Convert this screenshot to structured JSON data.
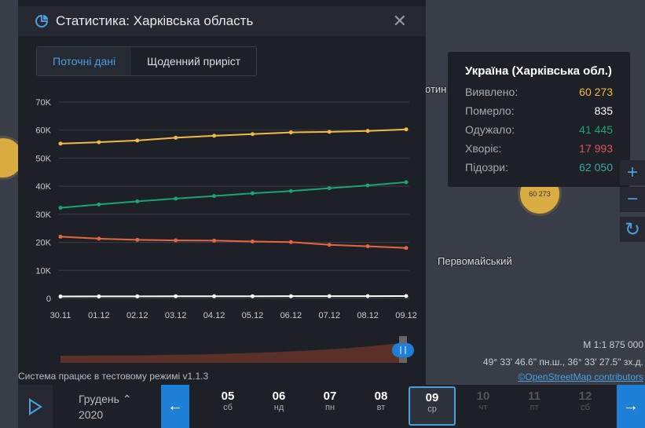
{
  "panel": {
    "title": "Статистика: Харківська область",
    "close": "✕",
    "tabs": [
      {
        "label": "Поточні дані",
        "active": true
      },
      {
        "label": "Щоденний приріст",
        "active": false
      }
    ]
  },
  "chart_data": {
    "type": "line",
    "x": [
      "30.11",
      "01.12",
      "02.12",
      "03.12",
      "04.12",
      "05.12",
      "06.12",
      "07.12",
      "08.12",
      "09.12"
    ],
    "yticks": [
      "0",
      "10K",
      "20K",
      "30K",
      "40K",
      "50K",
      "60K",
      "70K"
    ],
    "ylim": [
      0,
      70000
    ],
    "grid": true,
    "series": [
      {
        "color": "#f5b942",
        "values": [
          55200,
          55700,
          56300,
          57300,
          58000,
          58600,
          59200,
          59400,
          59700,
          60273
        ]
      },
      {
        "color": "#1aa56f",
        "values": [
          32300,
          33500,
          34600,
          35600,
          36500,
          37500,
          38300,
          39300,
          40300,
          41445
        ]
      },
      {
        "color": "#e8643c",
        "values": [
          22000,
          21300,
          20900,
          20700,
          20600,
          20300,
          20100,
          19100,
          18600,
          17993
        ]
      },
      {
        "color": "#ffffff",
        "values": [
          700,
          720,
          740,
          760,
          770,
          780,
          790,
          800,
          815,
          835
        ]
      }
    ]
  },
  "status": "Система працює в тестовому режимі v1.1.3",
  "tooltip": {
    "title": "Україна (Харківська обл.)",
    "rows": [
      {
        "label": "Виявлено:",
        "value": "60 273",
        "color": "#f5b942"
      },
      {
        "label": "Померло:",
        "value": "835",
        "color": "#ffffff"
      },
      {
        "label": "Одужало:",
        "value": "41 445",
        "color": "#1aa56f"
      },
      {
        "label": "Хворіє:",
        "value": "17 993",
        "color": "#e05252"
      },
      {
        "label": "Підозри:",
        "value": "62 050",
        "color": "#3aa6a0"
      }
    ]
  },
  "map": {
    "bubble": "60 273",
    "place1": "Первомайський",
    "place2": "отин",
    "scale": "М 1:1 875 000",
    "coords": "49° 33' 46.6\" пн.ш., 36° 33' 27.5\" зх.д.",
    "attribution": "©OpenStreetMap contributors",
    "zoom_in": "+",
    "zoom_out": "−",
    "reset": "↻"
  },
  "timeline": {
    "month": "Грудень",
    "year": "2020",
    "days": [
      {
        "n": "05",
        "w": "сб"
      },
      {
        "n": "06",
        "w": "нд"
      },
      {
        "n": "07",
        "w": "пн"
      },
      {
        "n": "08",
        "w": "вт"
      },
      {
        "n": "09",
        "w": "ср",
        "selected": true
      },
      {
        "n": "10",
        "w": "чт",
        "disabled": true
      },
      {
        "n": "11",
        "w": "пт",
        "disabled": true
      },
      {
        "n": "12",
        "w": "сб",
        "disabled": true
      }
    ]
  }
}
